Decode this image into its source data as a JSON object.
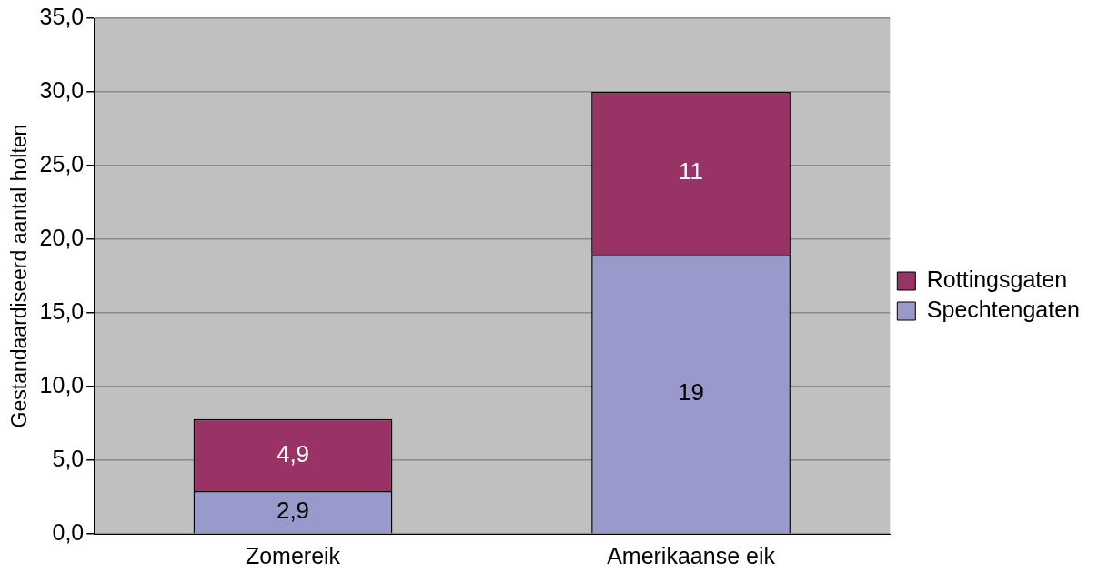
{
  "chart_data": {
    "type": "bar",
    "ylabel": "Gestandaardiseerd aantal holten",
    "categories": [
      "Zomereik",
      "Amerikaanse eik"
    ],
    "series": [
      {
        "name": "Spechtengaten",
        "color": "#9999cc",
        "values": [
          2.9,
          19
        ],
        "value_labels": [
          "2,9",
          "19"
        ]
      },
      {
        "name": "Rottingsgaten",
        "color": "#993366",
        "values": [
          4.9,
          11
        ],
        "value_labels": [
          "4,9",
          "11"
        ]
      }
    ],
    "stacked": true,
    "ylim": [
      0,
      35
    ],
    "yticks": [
      {
        "value": 0,
        "label": "0,0"
      },
      {
        "value": 5,
        "label": "5,0"
      },
      {
        "value": 10,
        "label": "10,0"
      },
      {
        "value": 15,
        "label": "15,0"
      },
      {
        "value": 20,
        "label": "20,0"
      },
      {
        "value": 25,
        "label": "25,0"
      },
      {
        "value": 30,
        "label": "30,0"
      },
      {
        "value": 35,
        "label": "35,0"
      }
    ],
    "grid": "y",
    "legend": "right"
  }
}
